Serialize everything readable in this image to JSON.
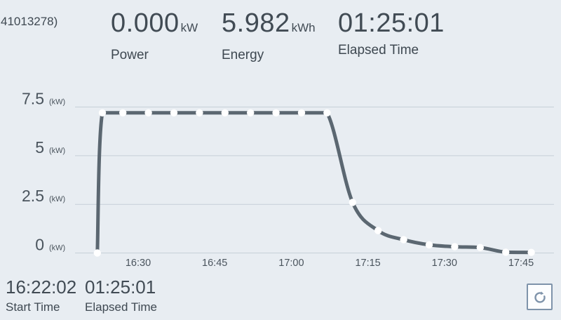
{
  "header": {
    "session_id_fragment": "41013278)",
    "stats": [
      {
        "value": "0.000",
        "unit": "kW",
        "label": "Power"
      },
      {
        "value": "5.982",
        "unit": "kWh",
        "label": "Energy"
      },
      {
        "value": "01:25:01",
        "unit": "",
        "label": "Elapsed Time"
      }
    ]
  },
  "footer": {
    "start": {
      "value": "16:22:02",
      "label": "Start Time"
    },
    "elapsed": {
      "value": "01:25:01",
      "label": "Elapsed Time"
    },
    "refresh_icon": "refresh-circular-arrow"
  },
  "colors": {
    "background": "#e8edf2",
    "text_primary": "#414b54",
    "tick_text": "#4a545d",
    "line": "#5b6771",
    "marker": "#ffffff",
    "grid": "#c6cfd8",
    "button_border": "#7e93aa",
    "button_bg": "#fcfdfe"
  },
  "chart_data": {
    "type": "line",
    "title": "",
    "xlabel": "",
    "ylabel": "Power (kW)",
    "y_unit_label": "(kW)",
    "ylim": [
      0,
      7.5
    ],
    "y_ticks": [
      0,
      2.5,
      5,
      7.5
    ],
    "y_tick_labels": [
      "0",
      "2.5",
      "5",
      "7.5"
    ],
    "x_ticks": [
      "16:30",
      "16:45",
      "17:00",
      "17:15",
      "17:30",
      "17:45"
    ],
    "grid": true,
    "legend": false,
    "series": [
      {
        "name": "Power",
        "points": [
          {
            "time": "16:22",
            "kw": 0
          },
          {
            "time": "16:23",
            "kw": 7.2
          },
          {
            "time": "16:27",
            "kw": 7.2
          },
          {
            "time": "16:32",
            "kw": 7.2
          },
          {
            "time": "16:37",
            "kw": 7.2
          },
          {
            "time": "16:42",
            "kw": 7.2
          },
          {
            "time": "16:47",
            "kw": 7.2
          },
          {
            "time": "16:52",
            "kw": 7.2
          },
          {
            "time": "16:57",
            "kw": 7.2
          },
          {
            "time": "17:02",
            "kw": 7.2
          },
          {
            "time": "17:07",
            "kw": 7.2
          },
          {
            "time": "17:12",
            "kw": 2.6
          },
          {
            "time": "17:17",
            "kw": 1.15
          },
          {
            "time": "17:22",
            "kw": 0.68
          },
          {
            "time": "17:27",
            "kw": 0.42
          },
          {
            "time": "17:32",
            "kw": 0.32
          },
          {
            "time": "17:37",
            "kw": 0.28
          },
          {
            "time": "17:42",
            "kw": 0.04
          },
          {
            "time": "17:47",
            "kw": 0.03
          }
        ]
      }
    ]
  }
}
